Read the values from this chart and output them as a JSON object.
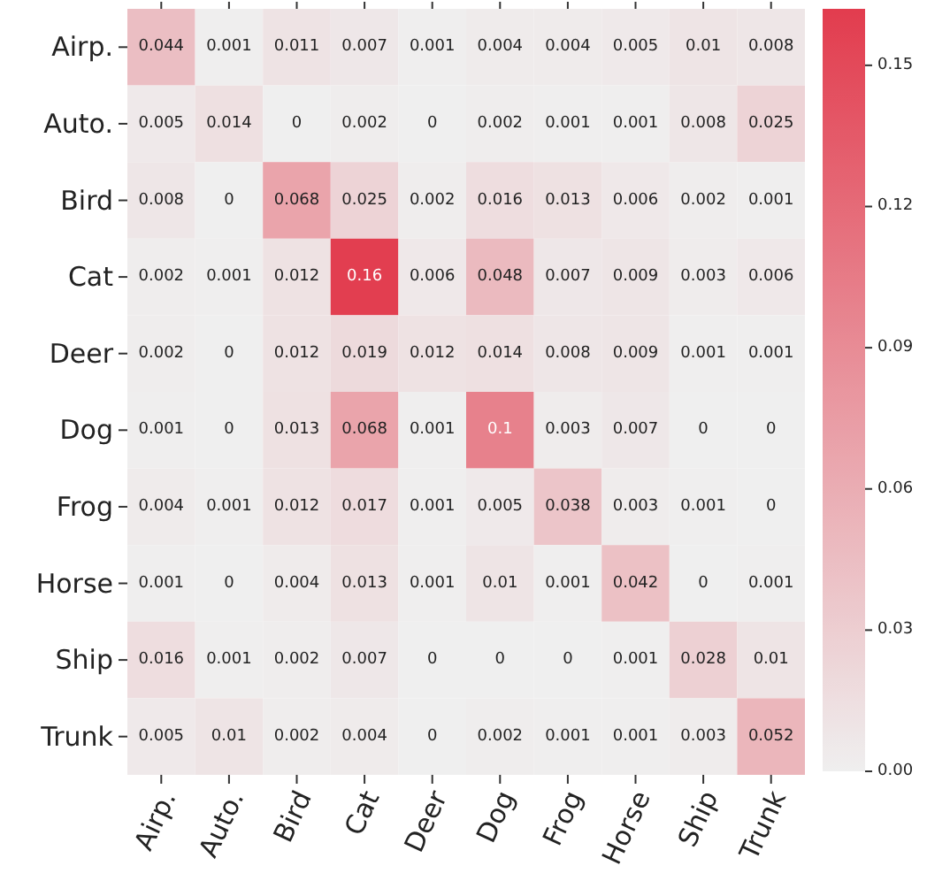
{
  "chart_data": {
    "type": "heatmap",
    "categories": [
      "Airp.",
      "Auto.",
      "Bird",
      "Cat",
      "Deer",
      "Dog",
      "Frog",
      "Horse",
      "Ship",
      "Trunk"
    ],
    "y_categories": [
      "Airp.",
      "Auto.",
      "Bird",
      "Cat",
      "Deer",
      "Dog",
      "Frog",
      "Horse",
      "Ship",
      "Trunk"
    ],
    "cells": [
      [
        0.044,
        0.001,
        0.011,
        0.007,
        0.001,
        0.004,
        0.004,
        0.005,
        0.01,
        0.008
      ],
      [
        0.005,
        0.014,
        0,
        0.002,
        0,
        0.002,
        0.001,
        0.001,
        0.008,
        0.025
      ],
      [
        0.008,
        0,
        0.068,
        0.025,
        0.002,
        0.016,
        0.013,
        0.006,
        0.002,
        0.001
      ],
      [
        0.002,
        0.001,
        0.012,
        0.16,
        0.006,
        0.048,
        0.007,
        0.009,
        0.003,
        0.006
      ],
      [
        0.002,
        0,
        0.012,
        0.019,
        0.012,
        0.014,
        0.008,
        0.009,
        0.001,
        0.001
      ],
      [
        0.001,
        0,
        0.013,
        0.068,
        0.001,
        0.1,
        0.003,
        0.007,
        0,
        0
      ],
      [
        0.004,
        0.001,
        0.012,
        0.017,
        0.001,
        0.005,
        0.038,
        0.003,
        0.001,
        0
      ],
      [
        0.001,
        0,
        0.004,
        0.013,
        0.001,
        0.01,
        0.001,
        0.042,
        0,
        0.001
      ],
      [
        0.016,
        0.001,
        0.002,
        0.007,
        0,
        0,
        0,
        0.001,
        0.028,
        0.01
      ],
      [
        0.005,
        0.01,
        0.002,
        0.004,
        0,
        0.002,
        0.001,
        0.001,
        0.003,
        0.052
      ]
    ],
    "clim": [
      0,
      0.162
    ],
    "cticks": [
      {
        "value": 0,
        "label": "0.00"
      },
      {
        "value": 0.03,
        "label": "0.03"
      },
      {
        "value": 0.06,
        "label": "0.06"
      },
      {
        "value": 0.09,
        "label": "0.09"
      },
      {
        "value": 0.12,
        "label": "0.12"
      },
      {
        "value": 0.15,
        "label": "0.15"
      }
    ],
    "data_labels": true
  }
}
